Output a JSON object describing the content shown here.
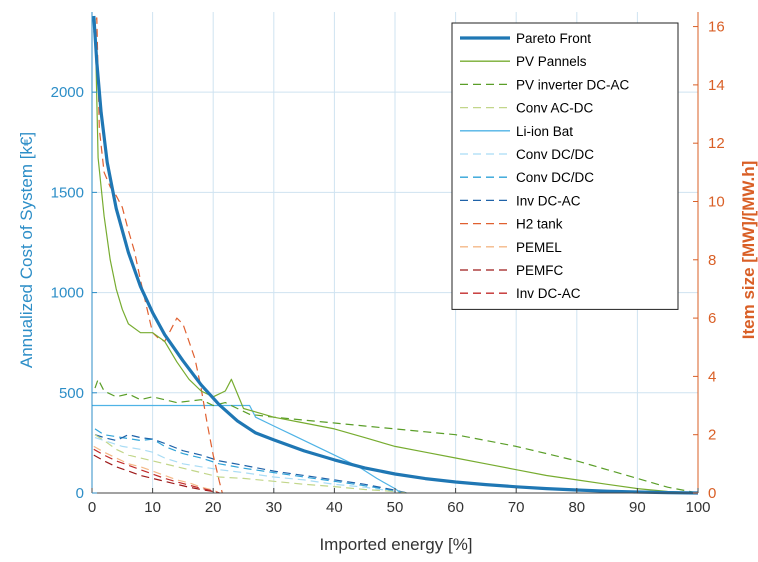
{
  "chart_data": {
    "type": "line",
    "xlabel": "Imported energy [%]",
    "ylabel_left": "Annualized Cost of System [k€]",
    "ylabel_right": "Item size [MW]/[MW.h]",
    "xlim": [
      0,
      100
    ],
    "ylim_left": [
      0,
      2400
    ],
    "ylim_right": [
      0,
      16.5
    ],
    "x_ticks": [
      0,
      10,
      20,
      30,
      40,
      50,
      60,
      70,
      80,
      90,
      100
    ],
    "y_left_ticks": [
      0,
      500,
      1000,
      1500,
      2000
    ],
    "y_right_ticks": [
      0,
      2,
      4,
      6,
      8,
      10,
      12,
      14,
      16
    ],
    "grid": true,
    "legend_position": "top-right",
    "series": [
      {
        "name": "Pareto Front",
        "axis": "left",
        "color": "#1f77b4",
        "dash": "solid",
        "width": 3.2,
        "points": [
          [
            0.3,
            2380
          ],
          [
            0.8,
            2150
          ],
          [
            1.5,
            1900
          ],
          [
            2.5,
            1650
          ],
          [
            4,
            1420
          ],
          [
            6,
            1200
          ],
          [
            8,
            1030
          ],
          [
            10,
            900
          ],
          [
            12,
            790
          ],
          [
            15,
            660
          ],
          [
            18,
            540
          ],
          [
            21,
            440
          ],
          [
            24,
            360
          ],
          [
            27,
            300
          ],
          [
            30,
            265
          ],
          [
            35,
            210
          ],
          [
            40,
            165
          ],
          [
            45,
            125
          ],
          [
            50,
            95
          ],
          [
            55,
            72
          ],
          [
            60,
            55
          ],
          [
            65,
            42
          ],
          [
            70,
            31
          ],
          [
            75,
            22
          ],
          [
            80,
            15
          ],
          [
            85,
            9
          ],
          [
            90,
            5
          ],
          [
            95,
            2
          ],
          [
            100,
            0
          ]
        ]
      },
      {
        "name": "PV Pannels",
        "axis": "right",
        "color": "#77ac30",
        "dash": "solid",
        "width": 1.2,
        "points": [
          [
            0.5,
            16.3
          ],
          [
            1,
            11.5
          ],
          [
            2,
            9.5
          ],
          [
            3,
            8
          ],
          [
            4,
            7
          ],
          [
            5,
            6.3
          ],
          [
            6,
            5.8
          ],
          [
            8,
            5.5
          ],
          [
            10,
            5.5
          ],
          [
            12,
            5.2
          ],
          [
            14,
            4.5
          ],
          [
            16,
            3.9
          ],
          [
            18,
            3.5
          ],
          [
            20,
            3.3
          ],
          [
            22,
            3.5
          ],
          [
            23,
            3.9
          ],
          [
            25,
            2.9
          ],
          [
            30,
            2.6
          ],
          [
            35,
            2.4
          ],
          [
            40,
            2.2
          ],
          [
            45,
            1.9
          ],
          [
            50,
            1.6
          ],
          [
            55,
            1.4
          ],
          [
            60,
            1.2
          ],
          [
            65,
            1.0
          ],
          [
            70,
            0.8
          ],
          [
            75,
            0.6
          ],
          [
            80,
            0.45
          ],
          [
            85,
            0.3
          ],
          [
            90,
            0.15
          ],
          [
            95,
            0.05
          ],
          [
            100,
            0
          ]
        ]
      },
      {
        "name": "PV inverter DC-AC",
        "axis": "right",
        "color": "#5a9e28",
        "dash": "8,5",
        "width": 1.2,
        "points": [
          [
            0.5,
            3.6
          ],
          [
            1,
            3.9
          ],
          [
            2,
            3.5
          ],
          [
            4,
            3.3
          ],
          [
            6,
            3.4
          ],
          [
            8,
            3.2
          ],
          [
            10,
            3.3
          ],
          [
            14,
            3.1
          ],
          [
            18,
            3.2
          ],
          [
            20,
            3.0
          ],
          [
            22,
            3.1
          ],
          [
            24,
            2.9
          ],
          [
            26,
            2.7
          ],
          [
            30,
            2.6
          ],
          [
            35,
            2.5
          ],
          [
            40,
            2.4
          ],
          [
            45,
            2.3
          ],
          [
            50,
            2.2
          ],
          [
            55,
            2.1
          ],
          [
            60,
            2.0
          ],
          [
            65,
            1.8
          ],
          [
            70,
            1.6
          ],
          [
            75,
            1.35
          ],
          [
            80,
            1.1
          ],
          [
            85,
            0.8
          ],
          [
            90,
            0.5
          ],
          [
            95,
            0.2
          ],
          [
            100,
            0
          ]
        ]
      },
      {
        "name": "Conv AC-DC",
        "axis": "right",
        "color": "#c2d68a",
        "dash": "8,5",
        "width": 1.2,
        "points": [
          [
            0.5,
            2.0
          ],
          [
            2,
            1.8
          ],
          [
            4,
            1.5
          ],
          [
            6,
            1.3
          ],
          [
            8,
            1.2
          ],
          [
            10,
            1.1
          ],
          [
            12,
            1.0
          ],
          [
            15,
            0.85
          ],
          [
            18,
            0.7
          ],
          [
            21,
            0.55
          ],
          [
            25,
            0.5
          ],
          [
            30,
            0.4
          ],
          [
            35,
            0.3
          ],
          [
            40,
            0.22
          ],
          [
            45,
            0.12
          ],
          [
            50,
            0.05
          ],
          [
            52,
            0
          ]
        ]
      },
      {
        "name": "Li-ion Bat",
        "axis": "right",
        "color": "#4fb3e6",
        "dash": "solid",
        "width": 1.2,
        "points": [
          [
            0,
            3.0
          ],
          [
            0.6,
            3.0
          ],
          [
            26,
            3.0
          ],
          [
            27,
            2.6
          ],
          [
            30,
            2.3
          ],
          [
            33,
            2.0
          ],
          [
            36,
            1.7
          ],
          [
            40,
            1.3
          ],
          [
            44,
            0.9
          ],
          [
            47,
            0.5
          ],
          [
            50,
            0.15
          ],
          [
            51,
            0
          ]
        ]
      },
      {
        "name": "Conv DC/DC",
        "axis": "right",
        "color": "#a9dcf5",
        "dash": "8,5",
        "width": 1.2,
        "points": [
          [
            0.5,
            1.9
          ],
          [
            2,
            1.8
          ],
          [
            5,
            1.6
          ],
          [
            8,
            1.5
          ],
          [
            10,
            1.4
          ],
          [
            12,
            1.2
          ],
          [
            15,
            1.0
          ],
          [
            18,
            0.9
          ],
          [
            21,
            0.8
          ],
          [
            25,
            0.7
          ],
          [
            30,
            0.55
          ],
          [
            35,
            0.45
          ],
          [
            40,
            0.3
          ],
          [
            45,
            0.2
          ],
          [
            50,
            0.05
          ],
          [
            52,
            0
          ]
        ]
      },
      {
        "name": "Conv DC/DC",
        "axis": "right",
        "color": "#2fa3d8",
        "dash": "8,5",
        "width": 1.2,
        "points": [
          [
            0.5,
            2.2
          ],
          [
            2,
            2.0
          ],
          [
            5,
            1.9
          ],
          [
            8,
            1.8
          ],
          [
            10,
            1.85
          ],
          [
            12,
            1.6
          ],
          [
            15,
            1.35
          ],
          [
            18,
            1.2
          ],
          [
            21,
            1.0
          ],
          [
            25,
            0.85
          ],
          [
            30,
            0.7
          ],
          [
            35,
            0.55
          ],
          [
            40,
            0.4
          ],
          [
            45,
            0.25
          ],
          [
            50,
            0.08
          ],
          [
            52,
            0
          ]
        ]
      },
      {
        "name": "Inv DC-AC",
        "axis": "right",
        "color": "#1f62a8",
        "dash": "8,5",
        "width": 1.2,
        "points": [
          [
            0.5,
            2.0
          ],
          [
            2,
            1.9
          ],
          [
            4,
            1.8
          ],
          [
            6,
            2.0
          ],
          [
            8,
            1.9
          ],
          [
            10,
            1.85
          ],
          [
            12,
            1.7
          ],
          [
            15,
            1.45
          ],
          [
            18,
            1.3
          ],
          [
            21,
            1.1
          ],
          [
            25,
            0.95
          ],
          [
            30,
            0.75
          ],
          [
            35,
            0.6
          ],
          [
            40,
            0.45
          ],
          [
            45,
            0.3
          ],
          [
            50,
            0.1
          ],
          [
            52,
            0
          ]
        ]
      },
      {
        "name": "H2 tank",
        "axis": "right",
        "color": "#e06030",
        "dash": "8,5",
        "width": 1.2,
        "points": [
          [
            0.3,
            15.8
          ],
          [
            0.8,
            16.3
          ],
          [
            1.2,
            12.5
          ],
          [
            2,
            11.0
          ],
          [
            3,
            10.5
          ],
          [
            4,
            10.2
          ],
          [
            5,
            9.8
          ],
          [
            6,
            9.0
          ],
          [
            7,
            8.3
          ],
          [
            8,
            7.3
          ],
          [
            9,
            6.4
          ],
          [
            10,
            5.5
          ],
          [
            11,
            5.3
          ],
          [
            12,
            5.2
          ],
          [
            13,
            5.6
          ],
          [
            14,
            6.0
          ],
          [
            15,
            5.8
          ],
          [
            16,
            5.2
          ],
          [
            17,
            4.6
          ],
          [
            18,
            3.6
          ],
          [
            19,
            2.4
          ],
          [
            20,
            1.3
          ],
          [
            21,
            0.4
          ],
          [
            21.5,
            0
          ]
        ]
      },
      {
        "name": "PEMEL",
        "axis": "right",
        "color": "#f4b887",
        "dash": "8,5",
        "width": 1.2,
        "points": [
          [
            0.3,
            1.6
          ],
          [
            2,
            1.4
          ],
          [
            4,
            1.2
          ],
          [
            6,
            1.0
          ],
          [
            8,
            0.9
          ],
          [
            10,
            0.75
          ],
          [
            12,
            0.6
          ],
          [
            14,
            0.45
          ],
          [
            16,
            0.35
          ],
          [
            18,
            0.2
          ],
          [
            20,
            0.1
          ],
          [
            21,
            0
          ]
        ]
      },
      {
        "name": "PEMFC",
        "axis": "right",
        "color": "#9e1b1b",
        "dash": "8,5",
        "width": 1.2,
        "points": [
          [
            0.3,
            1.3
          ],
          [
            2,
            1.1
          ],
          [
            4,
            0.9
          ],
          [
            6,
            0.75
          ],
          [
            8,
            0.6
          ],
          [
            10,
            0.5
          ],
          [
            12,
            0.4
          ],
          [
            14,
            0.3
          ],
          [
            16,
            0.2
          ],
          [
            18,
            0.12
          ],
          [
            20,
            0.05
          ],
          [
            21,
            0
          ]
        ]
      },
      {
        "name": "Inv DC-AC",
        "axis": "right",
        "color": "#c22b2b",
        "dash": "8,5",
        "width": 1.2,
        "points": [
          [
            0.3,
            1.5
          ],
          [
            2,
            1.3
          ],
          [
            4,
            1.1
          ],
          [
            6,
            0.95
          ],
          [
            8,
            0.8
          ],
          [
            10,
            0.65
          ],
          [
            12,
            0.5
          ],
          [
            14,
            0.38
          ],
          [
            16,
            0.27
          ],
          [
            18,
            0.16
          ],
          [
            20,
            0.07
          ],
          [
            21,
            0
          ]
        ]
      }
    ]
  }
}
